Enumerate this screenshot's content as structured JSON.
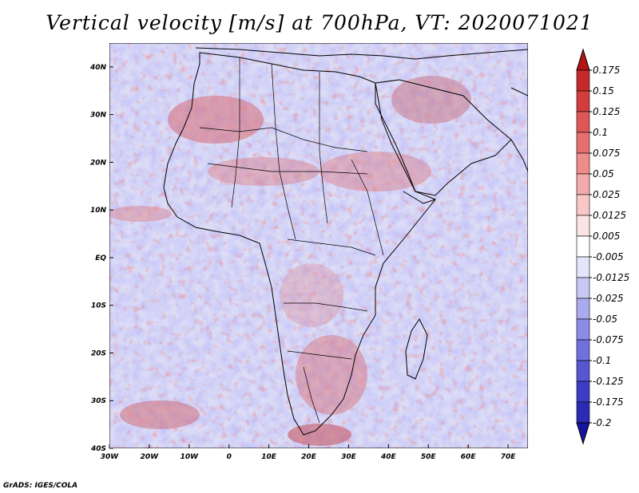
{
  "title": "Vertical velocity [m/s] at 700hPa, VT: 2020071021",
  "credit": "GrADS: IGES/COLA",
  "map": {
    "region": "Africa",
    "variable": "vertical velocity",
    "units": "m/s",
    "level": "700hPa",
    "lon_range": [
      -30,
      75
    ],
    "lat_range": [
      -40,
      45
    ],
    "lat_labels": [
      "40N",
      "30N",
      "20N",
      "10N",
      "EQ",
      "10S",
      "20S",
      "30S",
      "40S"
    ],
    "lon_labels": [
      "30W",
      "20W",
      "10W",
      "0",
      "10E",
      "20E",
      "30E",
      "40E",
      "50E",
      "60E",
      "70E"
    ]
  },
  "colorbar": {
    "labels": [
      "0.175",
      "0.15",
      "0.125",
      "0.1",
      "0.075",
      "0.05",
      "0.025",
      "0.0125",
      "0.005",
      "-0.005",
      "-0.0125",
      "-0.025",
      "-0.05",
      "-0.075",
      "-0.1",
      "-0.125",
      "-0.175",
      "-0.2"
    ],
    "colors": [
      "#b41414",
      "#c42a2a",
      "#d23c3c",
      "#de5656",
      "#e67070",
      "#ee8c8c",
      "#f4aaaa",
      "#f8c8c8",
      "#fce4e4",
      "#ffffff",
      "#e4e4fa",
      "#c8c8f4",
      "#aaaaee",
      "#8c8ce6",
      "#7070de",
      "#5656d2",
      "#3c3cc4",
      "#2a2ab4",
      "#1414a0"
    ]
  }
}
